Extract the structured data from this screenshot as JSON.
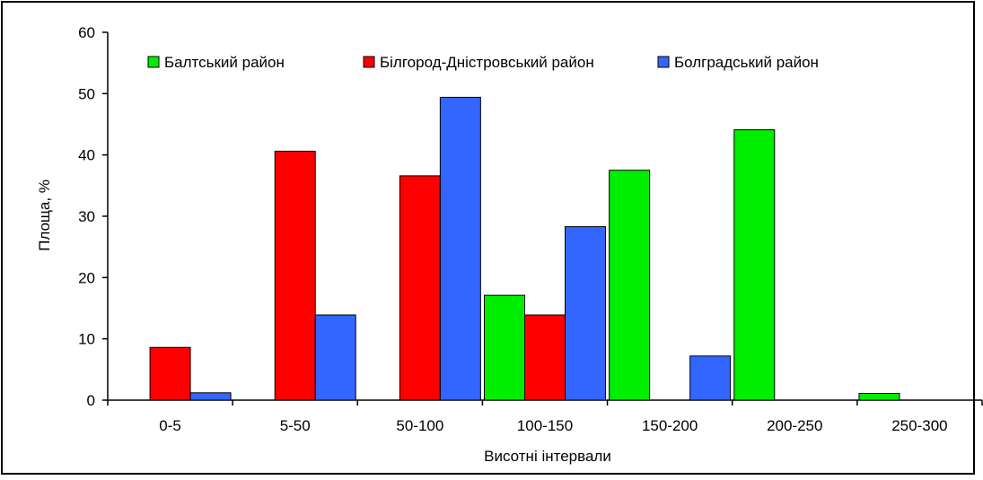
{
  "chart_data": {
    "type": "bar",
    "title": "",
    "xlabel": "Висотні інтервали",
    "ylabel": "Площа, %",
    "ylim": [
      0,
      60
    ],
    "yticks": [
      0,
      10,
      20,
      30,
      40,
      50,
      60
    ],
    "grid": false,
    "legend_position": "top",
    "categories": [
      "0-5",
      "5-50",
      "50-100",
      "100-150",
      "150-200",
      "200-250",
      "250-300"
    ],
    "series": [
      {
        "name": "Балтський район",
        "color": "#00ee00",
        "values": [
          null,
          null,
          null,
          17.1,
          37.5,
          44.1,
          1.1
        ]
      },
      {
        "name": "Білгород-Дністровський район",
        "color": "#ff0000",
        "values": [
          8.6,
          40.6,
          36.6,
          13.9,
          null,
          null,
          null
        ]
      },
      {
        "name": "Болградський район",
        "color": "#3366ff",
        "values": [
          1.2,
          13.9,
          49.4,
          28.3,
          7.2,
          null,
          null
        ]
      }
    ]
  }
}
